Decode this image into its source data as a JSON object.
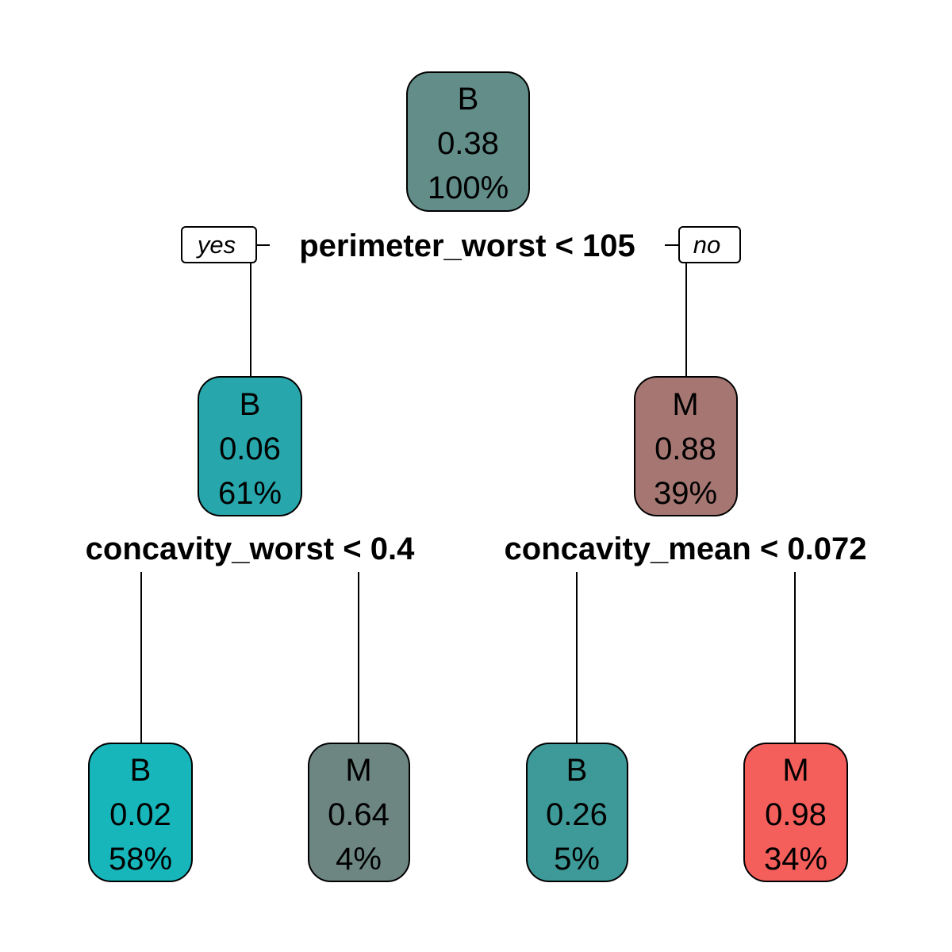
{
  "tree": {
    "nodes": {
      "root": {
        "class": "B",
        "value": "0.38",
        "share": "100%",
        "color": "#628D89"
      },
      "left": {
        "class": "B",
        "value": "0.06",
        "share": "61%",
        "color": "#27A7AC"
      },
      "right": {
        "class": "M",
        "value": "0.88",
        "share": "39%",
        "color": "#A67772"
      },
      "left_left": {
        "class": "B",
        "value": "0.02",
        "share": "58%",
        "color": "#16B6BB"
      },
      "left_right": {
        "class": "M",
        "value": "0.64",
        "share": "4%",
        "color": "#6D8682"
      },
      "right_left": {
        "class": "B",
        "value": "0.26",
        "share": "5%",
        "color": "#3E9A98"
      },
      "right_right": {
        "class": "M",
        "value": "0.98",
        "share": "34%",
        "color": "#F45E5B"
      }
    },
    "splits": {
      "root": "perimeter_worst < 105",
      "left": "concavity_worst < 0.4",
      "right": "concavity_mean < 0.072"
    },
    "branch_labels": {
      "yes": "yes",
      "no": "no"
    }
  }
}
